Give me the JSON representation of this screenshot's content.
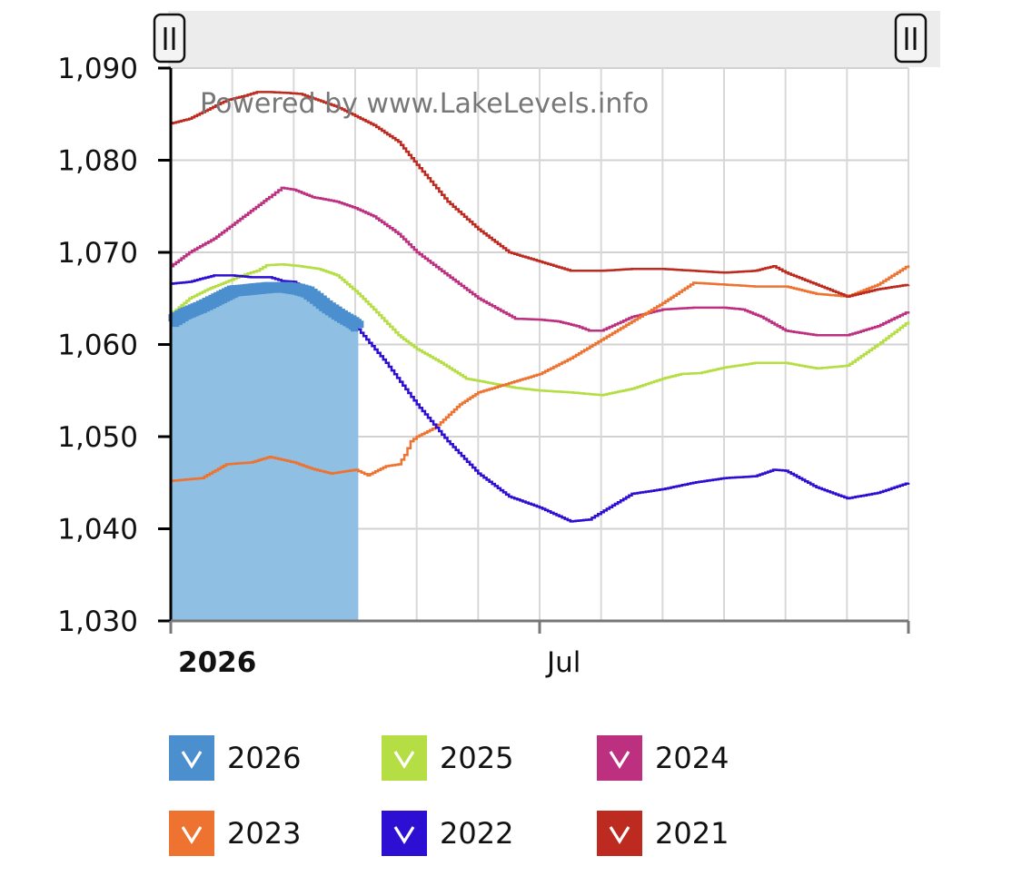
{
  "watermark": "Powered by www.LakeLevels.info",
  "chart_data": {
    "type": "line",
    "y_ticks": [
      "1,030",
      "1,040",
      "1,050",
      "1,060",
      "1,070",
      "1,080",
      "1,090"
    ],
    "ylim": [
      1030,
      1090
    ],
    "x_ticks": [
      "2026",
      "Jul"
    ],
    "x_tick_months": [
      0,
      6
    ],
    "x_range_months": [
      0,
      12
    ],
    "grid": true,
    "legend_position": "bottom",
    "series": [
      {
        "name": "2026",
        "color": "#4b8fcf",
        "fill": "#8fc0e3",
        "style": "area",
        "x": [
          0,
          0.2,
          0.45,
          0.7,
          1.0,
          1.3,
          1.6,
          1.85,
          2.05,
          2.2,
          2.35,
          2.5,
          2.7,
          2.98,
          3.05
        ],
        "y": [
          1062.5,
          1063.3,
          1064.0,
          1064.8,
          1065.8,
          1066.0,
          1066.2,
          1066.2,
          1066.0,
          1065.7,
          1065.0,
          1064.2,
          1063.3,
          1062.2,
          1061.8
        ]
      },
      {
        "name": "2025",
        "color": "#b5dd44",
        "x": [
          0,
          0.3,
          0.6,
          0.9,
          1.2,
          1.4,
          1.55,
          1.8,
          2.1,
          2.4,
          2.7,
          3.0,
          3.3,
          3.7,
          4.0,
          4.4,
          4.8,
          5.2,
          5.6,
          6.0,
          6.5,
          7.0,
          7.5,
          8.0,
          8.3,
          8.6,
          9.0,
          9.5,
          10.0,
          10.5,
          11.0,
          11.5,
          12.0
        ],
        "y": [
          1063.3,
          1065.0,
          1066.0,
          1066.8,
          1067.6,
          1068.0,
          1068.6,
          1068.7,
          1068.5,
          1068.2,
          1067.5,
          1065.8,
          1063.8,
          1061.0,
          1059.5,
          1058.0,
          1056.3,
          1055.8,
          1055.3,
          1055.0,
          1054.8,
          1054.5,
          1055.2,
          1056.3,
          1056.8,
          1056.9,
          1057.5,
          1058.0,
          1058.0,
          1057.4,
          1057.7,
          1060.0,
          1062.5
        ]
      },
      {
        "name": "2024",
        "color": "#bd2f7f",
        "x": [
          0,
          0.3,
          0.7,
          1.0,
          1.3,
          1.6,
          1.8,
          2.0,
          2.3,
          2.7,
          3.0,
          3.3,
          3.7,
          4.0,
          4.5,
          5.0,
          5.6,
          6.0,
          6.3,
          6.6,
          6.8,
          7.0,
          7.5,
          8.0,
          8.5,
          9.0,
          9.3,
          9.6,
          10.0,
          10.5,
          11.0,
          11.5,
          12.0
        ],
        "y": [
          1068.5,
          1070.0,
          1071.5,
          1073.0,
          1074.5,
          1076.0,
          1077.0,
          1076.8,
          1076.0,
          1075.5,
          1074.8,
          1073.9,
          1072.0,
          1070.0,
          1067.5,
          1065.0,
          1062.8,
          1062.7,
          1062.5,
          1062.0,
          1061.5,
          1061.5,
          1063.0,
          1063.8,
          1064.0,
          1064.0,
          1063.8,
          1063.0,
          1061.5,
          1061.0,
          1061.0,
          1062.0,
          1063.6
        ]
      },
      {
        "name": "2023",
        "color": "#ee7230",
        "x": [
          0,
          0.5,
          0.9,
          1.3,
          1.6,
          1.8,
          2.0,
          2.3,
          2.6,
          3.0,
          3.2,
          3.5,
          3.7,
          3.8,
          3.9,
          4.0,
          4.3,
          4.7,
          5.0,
          5.5,
          6.0,
          6.5,
          7.0,
          7.5,
          8.0,
          8.5,
          9.0,
          9.5,
          10.0,
          10.5,
          11.0,
          11.5,
          12.0
        ],
        "y": [
          1045.2,
          1045.5,
          1047.0,
          1047.2,
          1047.8,
          1047.5,
          1047.2,
          1046.5,
          1046.0,
          1046.4,
          1045.8,
          1046.8,
          1047.0,
          1048.0,
          1049.5,
          1050.0,
          1051.0,
          1053.5,
          1054.8,
          1055.8,
          1056.8,
          1058.5,
          1060.5,
          1062.5,
          1064.5,
          1066.7,
          1066.5,
          1066.3,
          1066.3,
          1065.5,
          1065.2,
          1066.5,
          1068.6
        ]
      },
      {
        "name": "2022",
        "color": "#2c0fd2",
        "x": [
          0,
          0.3,
          0.7,
          1.0,
          1.3,
          1.6,
          1.8,
          2.0,
          2.3,
          2.7,
          3.0,
          3.5,
          4.0,
          4.5,
          5.0,
          5.5,
          6.0,
          6.5,
          6.8,
          7.0,
          7.5,
          8.0,
          8.5,
          9.0,
          9.5,
          9.8,
          10.0,
          10.5,
          11.0,
          11.5,
          12.0
        ],
        "y": [
          1066.6,
          1066.8,
          1067.5,
          1067.5,
          1067.3,
          1067.3,
          1066.9,
          1066.8,
          1065.5,
          1064.0,
          1062.0,
          1058.0,
          1053.5,
          1049.5,
          1046.0,
          1043.5,
          1042.3,
          1040.8,
          1041.0,
          1041.8,
          1043.8,
          1044.3,
          1045.0,
          1045.5,
          1045.7,
          1046.4,
          1046.3,
          1044.5,
          1043.3,
          1043.9,
          1045.0
        ]
      },
      {
        "name": "2021",
        "color": "#bd2a1f",
        "x": [
          0,
          0.3,
          0.6,
          0.9,
          1.2,
          1.4,
          1.6,
          1.9,
          2.1,
          2.4,
          2.7,
          3.0,
          3.3,
          3.7,
          4.0,
          4.5,
          5.0,
          5.5,
          6.0,
          6.5,
          7.0,
          7.5,
          8.0,
          8.5,
          9.0,
          9.5,
          9.8,
          10.0,
          10.5,
          11.0,
          11.5,
          12.0
        ],
        "y": [
          1084.0,
          1084.5,
          1085.5,
          1086.5,
          1087.0,
          1087.4,
          1087.4,
          1087.3,
          1087.2,
          1086.5,
          1085.8,
          1084.8,
          1083.8,
          1082.0,
          1079.5,
          1075.5,
          1072.5,
          1070.0,
          1069.0,
          1068.0,
          1068.0,
          1068.2,
          1068.2,
          1068.0,
          1067.8,
          1068.0,
          1068.5,
          1067.8,
          1066.5,
          1065.2,
          1066.0,
          1066.5
        ]
      }
    ]
  }
}
